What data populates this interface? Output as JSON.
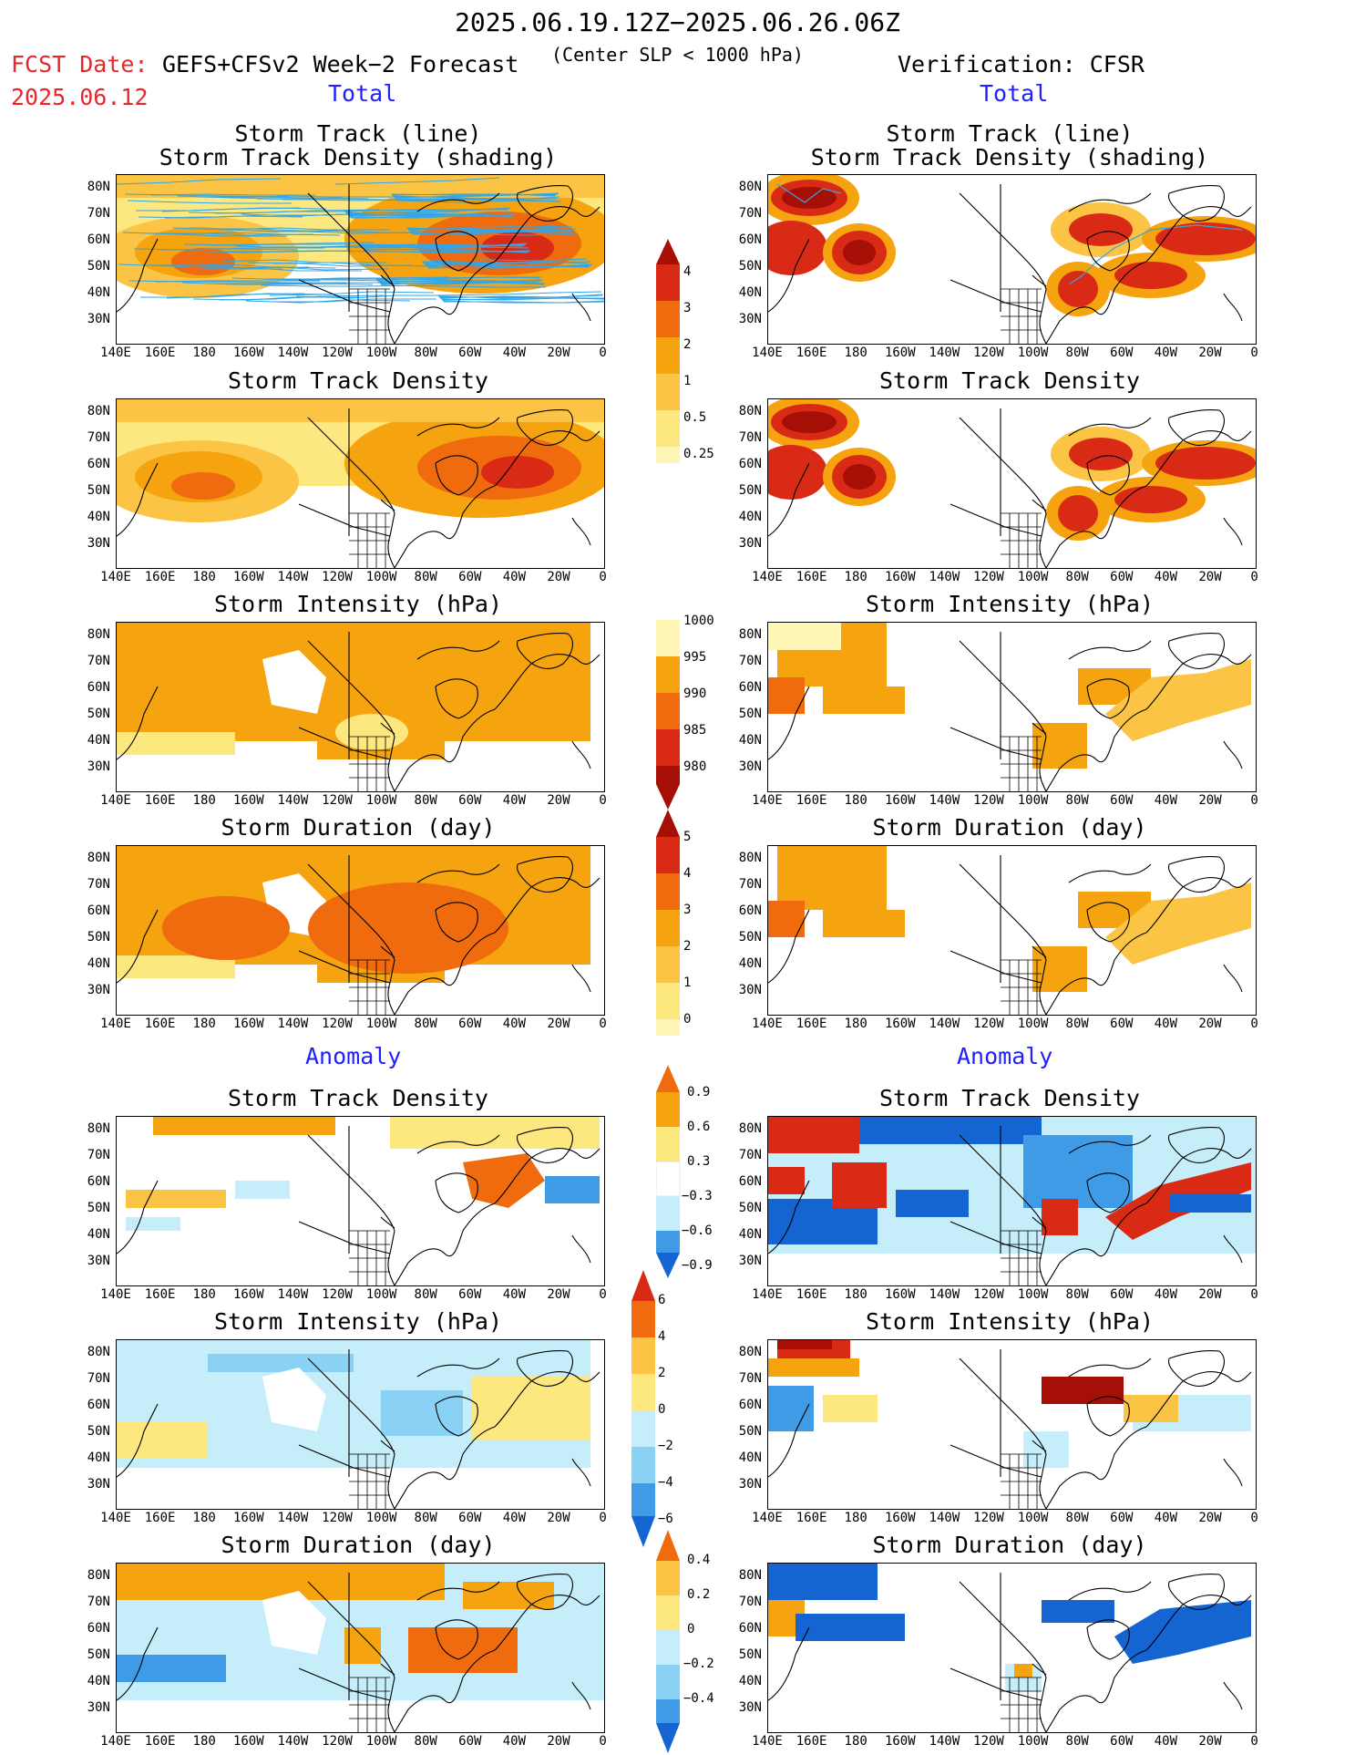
{
  "header": {
    "date_range": "2025.06.19.12Z−2025.06.26.06Z",
    "fcst_label": "FCST Date:",
    "fcst_date": "2025.06.12",
    "model": "GEFS+CFSv2 Week−2 Forecast",
    "criterion": "(Center SLP < 1000 hPa)",
    "verification": "Verification: CFSR"
  },
  "sections": {
    "total": "Total",
    "anomaly": "Anomaly"
  },
  "panel_titles": {
    "track_line": "Storm Track (line)",
    "track_shading": "Storm Track Density (shading)",
    "density": "Storm Track Density",
    "intensity": "Storm Intensity (hPa)",
    "duration": "Storm Duration (day)"
  },
  "axes": {
    "lat_labels": [
      "80N",
      "70N",
      "60N",
      "50N",
      "40N",
      "30N"
    ],
    "lon_labels": [
      "140E",
      "160E",
      "180",
      "160W",
      "140W",
      "120W",
      "100W",
      "80W",
      "60W",
      "40W",
      "20W",
      "0"
    ]
  },
  "colorbars": {
    "density_total": [
      "4",
      "3",
      "2",
      "1",
      "0.5",
      "0.25"
    ],
    "intensity_total": [
      "1000",
      "995",
      "990",
      "985",
      "980"
    ],
    "duration_total": [
      "5",
      "4",
      "3",
      "2",
      "1",
      "0"
    ],
    "density_anom": [
      "0.9",
      "0.6",
      "0.3",
      "−0.3",
      "−0.6",
      "−0.9"
    ],
    "intensity_anom": [
      "6",
      "4",
      "2",
      "0",
      "−2",
      "−4",
      "−6"
    ],
    "duration_anom": [
      "0.4",
      "0.2",
      "0",
      "−0.2",
      "−0.4"
    ]
  },
  "colors": {
    "light_yellow": "#fff5b5",
    "yellow": "#fde77f",
    "orange_light": "#fbc444",
    "orange": "#f5a30f",
    "orange_dark": "#f06a0e",
    "red": "#d92a16",
    "dark_red": "#a50f05",
    "light_blue": "#c5eefa",
    "mid_blue": "#8ad2f5",
    "blue": "#3f9be6",
    "dark_blue": "#1464d2",
    "track_line": "#32a6e8"
  }
}
